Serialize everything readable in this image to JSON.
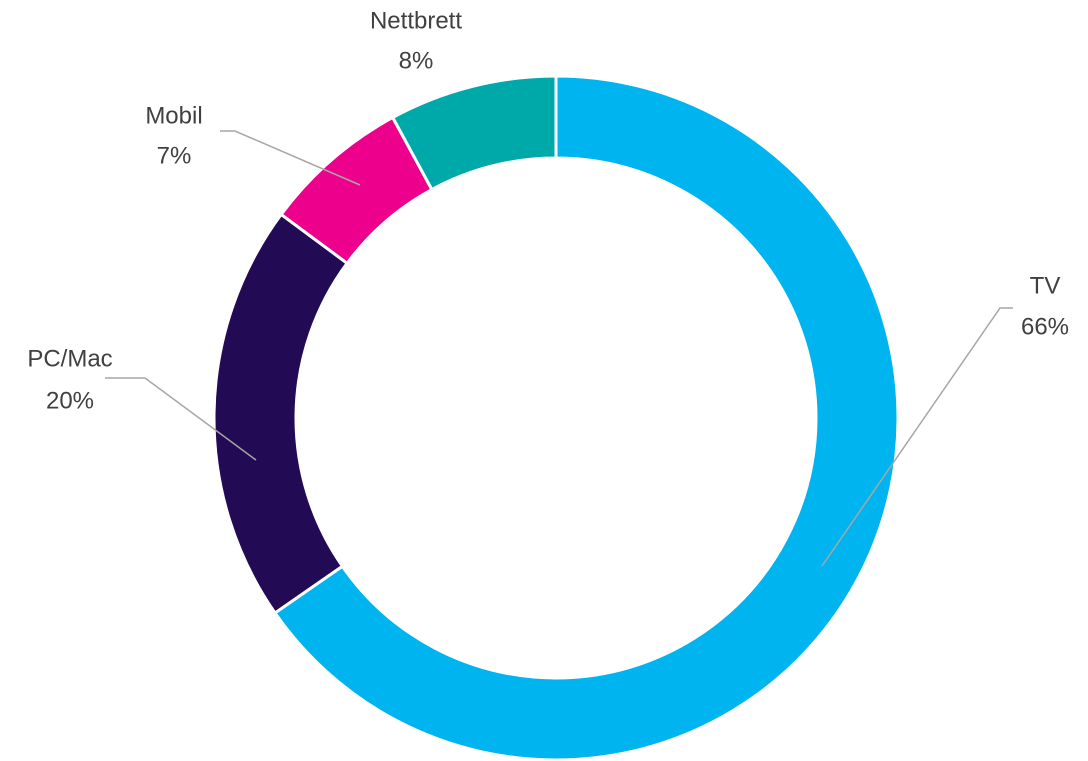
{
  "chart_data": {
    "type": "donut",
    "categories": [
      "TV",
      "PC/Mac",
      "Mobil",
      "Nettbrett"
    ],
    "values": [
      66,
      20,
      7,
      8
    ],
    "value_labels": [
      "66%",
      "20%",
      "7%",
      "8%"
    ],
    "colors": [
      "#00b5ef",
      "#230a54",
      "#ec008c",
      "#00a9a9"
    ]
  }
}
